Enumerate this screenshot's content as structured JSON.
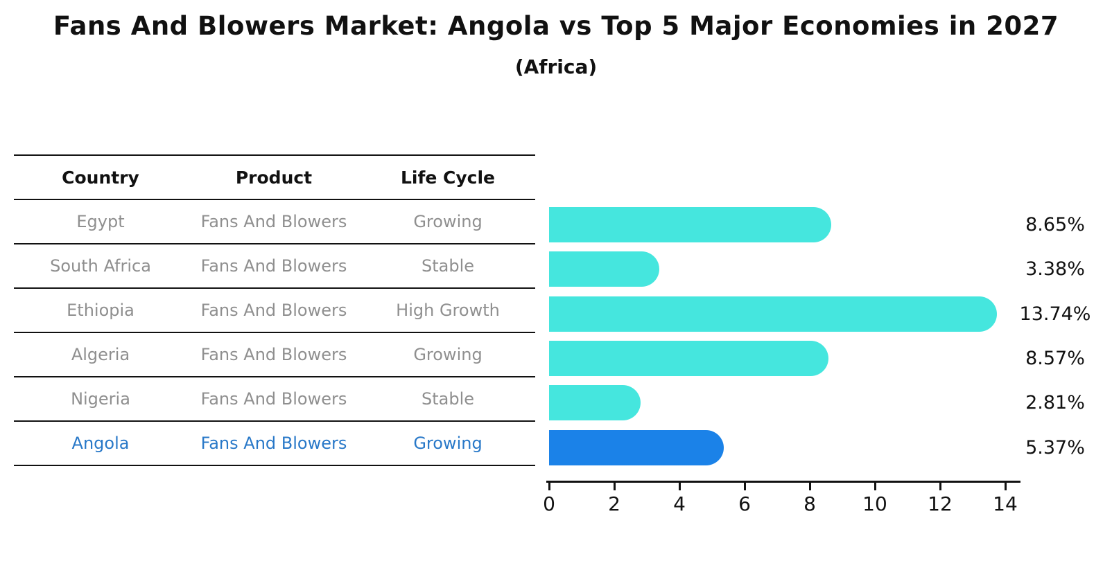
{
  "title": "Fans And Blowers Market: Angola vs Top 5 Major Economies in 2027",
  "subtitle": "(Africa)",
  "table": {
    "headers": [
      "Country",
      "Product",
      "Life Cycle"
    ],
    "rows": [
      {
        "country": "Egypt",
        "product": "Fans And Blowers",
        "life_cycle": "Growing",
        "highlight": false
      },
      {
        "country": "South Africa",
        "product": "Fans And Blowers",
        "life_cycle": "Stable",
        "highlight": false
      },
      {
        "country": "Ethiopia",
        "product": "Fans And Blowers",
        "life_cycle": "High Growth",
        "highlight": false
      },
      {
        "country": "Algeria",
        "product": "Fans And Blowers",
        "life_cycle": "Growing",
        "highlight": false
      },
      {
        "country": "Nigeria",
        "product": "Fans And Blowers",
        "life_cycle": "Stable",
        "highlight": false
      },
      {
        "country": "Angola",
        "product": "Fans And Blowers",
        "life_cycle": "Growing",
        "highlight": true
      }
    ]
  },
  "chart_data": {
    "type": "bar",
    "orientation": "horizontal",
    "title": "Fans And Blowers Market: Angola vs Top 5 Major Economies in 2027",
    "subtitle": "(Africa)",
    "categories": [
      "Egypt",
      "South Africa",
      "Ethiopia",
      "Algeria",
      "Nigeria",
      "Angola"
    ],
    "values": [
      8.65,
      3.38,
      13.74,
      8.57,
      2.81,
      5.37
    ],
    "value_labels": [
      "8.65%",
      "3.38%",
      "13.74%",
      "8.57%",
      "2.81%",
      "5.37%"
    ],
    "highlight_index": 5,
    "xlim": [
      0,
      14
    ],
    "x_ticks": [
      0,
      2,
      4,
      6,
      8,
      10,
      12,
      14
    ],
    "xlabel": "",
    "ylabel": "",
    "grid": false,
    "legend": "none",
    "colors": {
      "bar": "#45e6de",
      "highlight_bar": "#1b82e8",
      "highlight_text": "#2878c8",
      "text": "#111111",
      "muted_text": "#8f8f8f"
    }
  }
}
